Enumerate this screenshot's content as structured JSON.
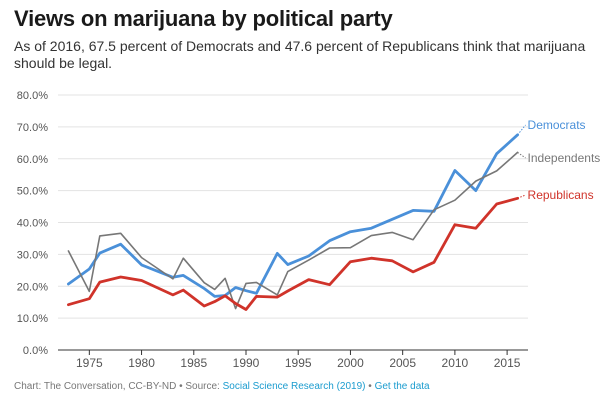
{
  "title": "Views on marijuana by political party",
  "subtitle": "As of 2016, 67.5 percent of Democrats and 47.6 percent of Republicans think that marijuana should be legal.",
  "footer": {
    "credit": "Chart: The Conversation, CC-BY-ND",
    "source_prefix": "Source:",
    "source_link": "Social Science Research (2019)",
    "data_link": "Get the data",
    "separator": "•"
  },
  "chart_data": {
    "type": "line",
    "title": "Views on marijuana by political party",
    "xlabel": "",
    "ylabel": "",
    "xlim": [
      1972,
      2017
    ],
    "ylim": [
      0,
      80
    ],
    "x_ticks": [
      1975,
      1980,
      1985,
      1990,
      1995,
      2000,
      2005,
      2010,
      2015
    ],
    "y_ticks": [
      0,
      10,
      20,
      30,
      40,
      50,
      60,
      70,
      80
    ],
    "y_tick_labels": [
      "0.0%",
      "10.0%",
      "20.0%",
      "30.0%",
      "40.0%",
      "50.0%",
      "60.0%",
      "70.0%",
      "80.0%"
    ],
    "grid": true,
    "legend": "inline labels at line ends",
    "series": [
      {
        "name": "Democrats",
        "color": "#4a90d9",
        "x": [
          1973,
          1975,
          1976,
          1978,
          1980,
          1983,
          1984,
          1986,
          1987,
          1988,
          1989,
          1990,
          1991,
          1993,
          1994,
          1996,
          1998,
          2000,
          2002,
          2004,
          2006,
          2008,
          2010,
          2012,
          2014,
          2016
        ],
        "y": [
          20.7,
          25.4,
          30.4,
          33.2,
          26.7,
          22.8,
          23.4,
          19.3,
          16.8,
          17.1,
          19.6,
          18.6,
          17.8,
          30.3,
          26.8,
          29.5,
          34.3,
          37.1,
          38.2,
          41.0,
          43.8,
          43.5,
          56.3,
          50.0,
          61.6,
          67.5
        ]
      },
      {
        "name": "Independents",
        "color": "#777777",
        "x": [
          1973,
          1975,
          1976,
          1978,
          1980,
          1983,
          1984,
          1986,
          1987,
          1988,
          1989,
          1990,
          1991,
          1993,
          1994,
          1996,
          1998,
          2000,
          2002,
          2004,
          2006,
          2008,
          2010,
          2012,
          2014,
          2016
        ],
        "y": [
          31.1,
          18.4,
          35.8,
          36.6,
          29.0,
          22.3,
          28.8,
          21.1,
          19.0,
          22.5,
          13.0,
          20.9,
          21.2,
          17.3,
          24.6,
          28.2,
          32.0,
          32.1,
          35.9,
          36.9,
          34.6,
          44.0,
          47.0,
          53.0,
          56.2,
          62.0
        ]
      },
      {
        "name": "Republicans",
        "color": "#d0332a",
        "x": [
          1973,
          1975,
          1976,
          1978,
          1980,
          1983,
          1984,
          1986,
          1987,
          1988,
          1989,
          1990,
          1991,
          1993,
          1994,
          1996,
          1998,
          2000,
          2002,
          2004,
          2006,
          2008,
          2010,
          2012,
          2014,
          2016
        ],
        "y": [
          14.2,
          16.1,
          21.3,
          22.9,
          21.8,
          17.3,
          18.8,
          13.8,
          15.2,
          17.0,
          14.6,
          12.7,
          16.8,
          16.6,
          18.5,
          22.1,
          20.5,
          27.7,
          28.8,
          28.0,
          24.5,
          27.5,
          39.3,
          38.2,
          45.8,
          47.6
        ]
      }
    ]
  }
}
